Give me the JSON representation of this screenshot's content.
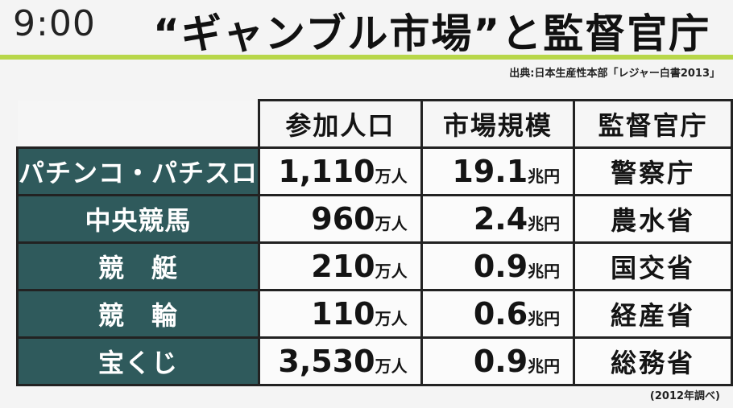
{
  "clock": "9:00",
  "headline": "“ギャンブル市場”と監督官庁",
  "source": "出典:日本生産性本部「レジャー白書2013」",
  "table": {
    "columns": [
      "参加人口",
      "市場規模",
      "監督官庁"
    ],
    "rows": [
      {
        "name": "パチンコ・パチスロ",
        "population": "1,110",
        "population_unit": "万人",
        "market": "19.1",
        "market_unit": "兆円",
        "agency": "警察庁"
      },
      {
        "name": "中央競馬",
        "population": "960",
        "population_unit": "万人",
        "market": "2.4",
        "market_unit": "兆円",
        "agency": "農水省"
      },
      {
        "name": "競　艇",
        "population": "210",
        "population_unit": "万人",
        "market": "0.9",
        "market_unit": "兆円",
        "agency": "国交省"
      },
      {
        "name": "競　輪",
        "population": "110",
        "population_unit": "万人",
        "market": "0.6",
        "market_unit": "兆円",
        "agency": "経産省"
      },
      {
        "name": "宝くじ",
        "population": "3,530",
        "population_unit": "万人",
        "market": "0.9",
        "market_unit": "兆円",
        "agency": "総務省"
      }
    ]
  },
  "note": "(2012年調べ)",
  "colors": {
    "accent_rule": "#b8d74a",
    "row_header_bg": "#2f5a5c"
  }
}
